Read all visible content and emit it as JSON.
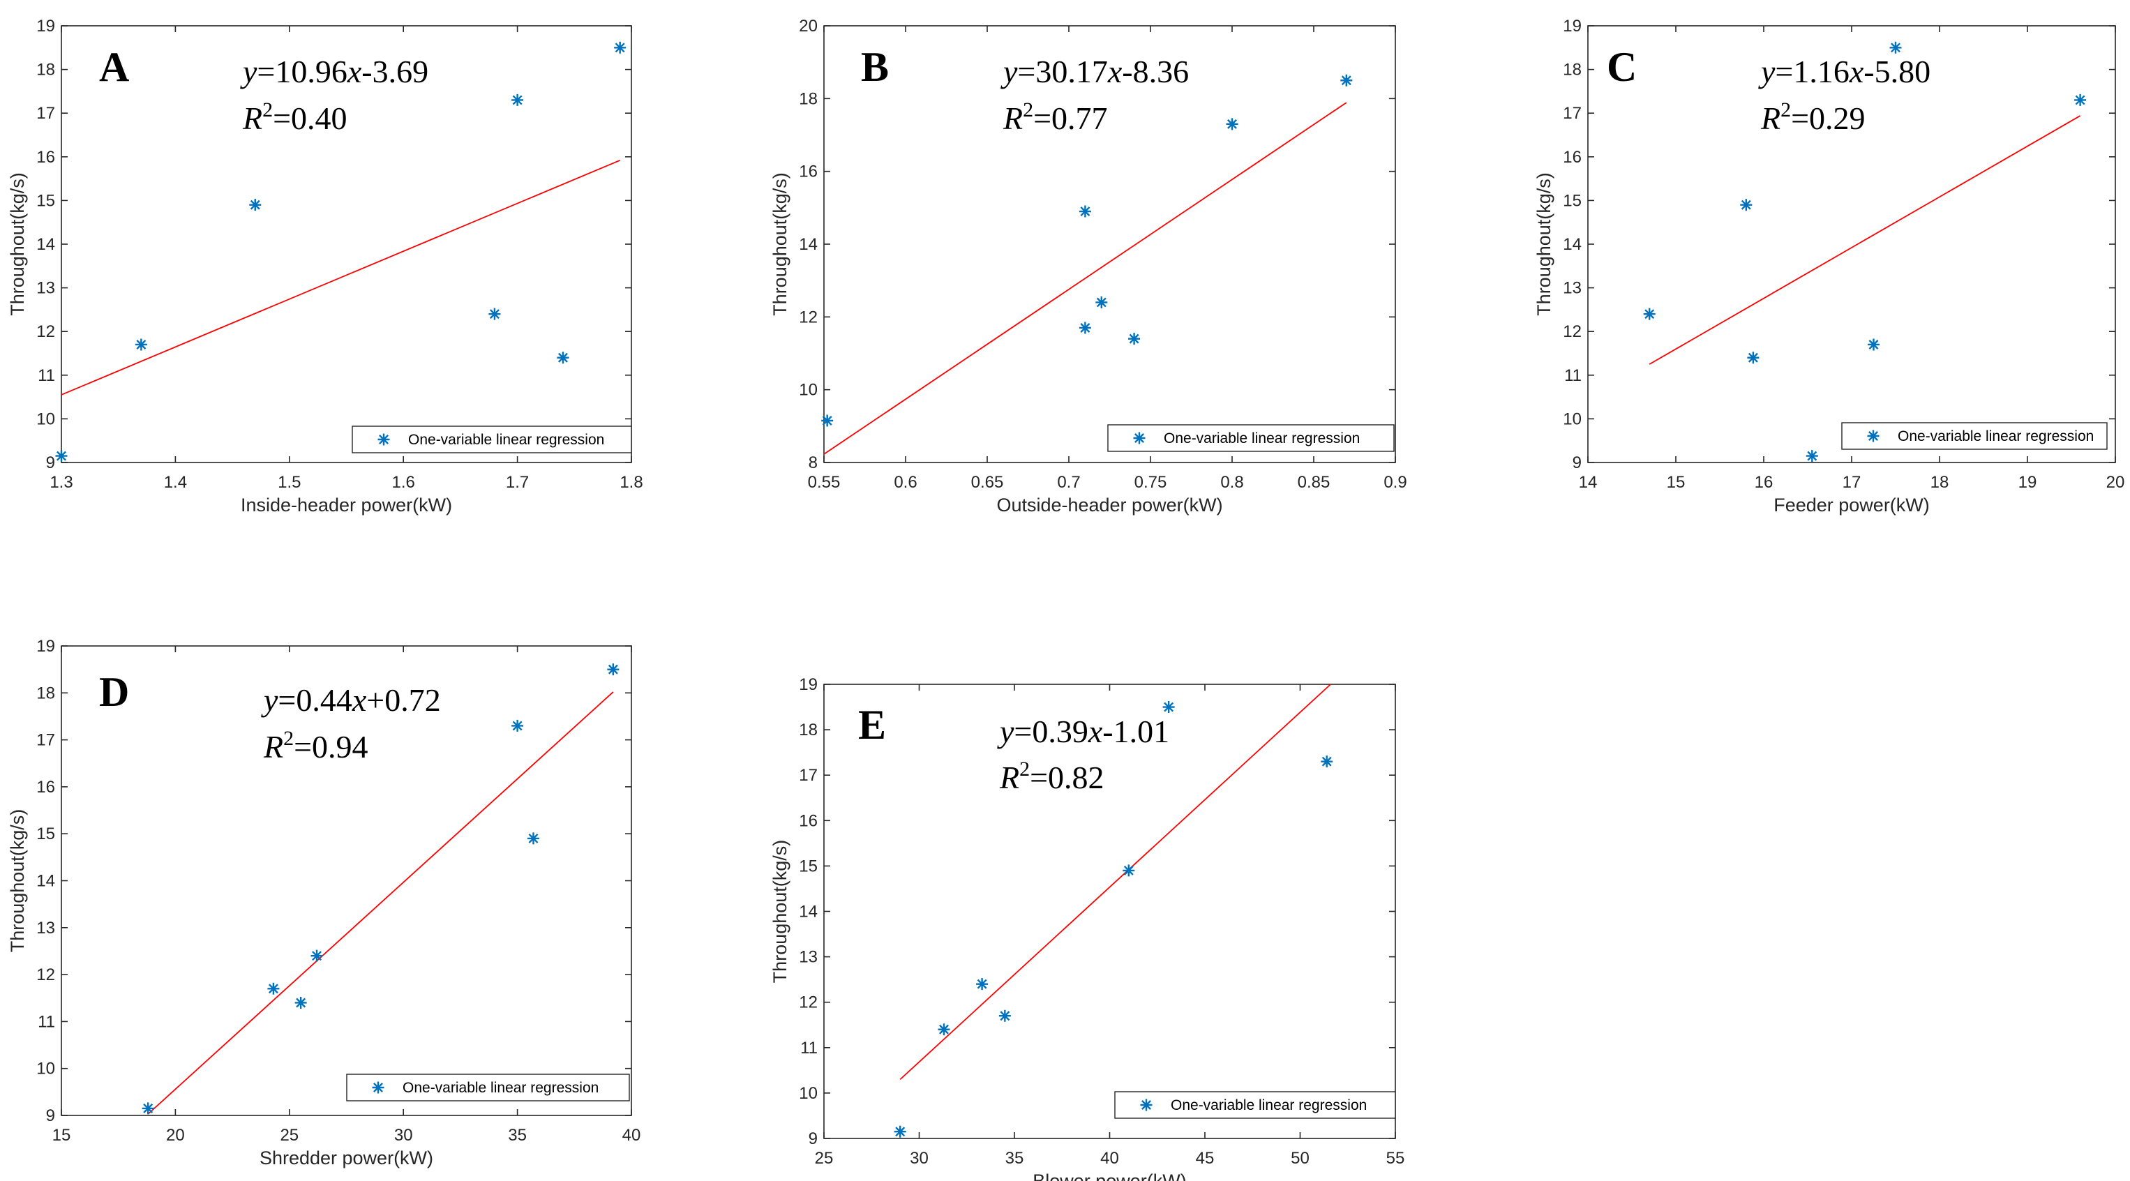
{
  "colors": {
    "marker": "#0072BD",
    "fit_line": "#FF0000",
    "axis": "#262626"
  },
  "chart_data": [
    {
      "type": "scatter",
      "panel_label": "A",
      "equation": {
        "y": "y",
        "eq": "=10.96",
        "x": "x",
        "rest": "-3.69"
      },
      "r2": {
        "R": "R",
        "sup": "2",
        "rest": "=0.40"
      },
      "xlabel": "Inside-header power(kW)",
      "ylabel": "Throughout(kg/s)",
      "xlim": [
        1.3,
        1.8
      ],
      "ylim": [
        9,
        19
      ],
      "xticks": [
        "1.3",
        "1.4",
        "1.5",
        "1.6",
        "1.7",
        "1.8"
      ],
      "yticks": [
        "9",
        "10",
        "11",
        "12",
        "13",
        "14",
        "15",
        "16",
        "17",
        "18",
        "19"
      ],
      "legend": "One-variable linear regression",
      "legend_position": "bottom-right",
      "series": [
        {
          "name": "One-variable linear regression",
          "x": [
            1.3,
            1.37,
            1.47,
            1.68,
            1.7,
            1.74,
            1.79
          ],
          "y": [
            9.15,
            11.7,
            14.9,
            12.4,
            17.3,
            11.4,
            18.5
          ]
        }
      ],
      "fit_line": {
        "x": [
          1.3,
          1.79
        ],
        "y": [
          10.55,
          15.92
        ]
      }
    },
    {
      "type": "scatter",
      "panel_label": "B",
      "equation": {
        "y": "y",
        "eq": "=30.17",
        "x": "x",
        "rest": "-8.36"
      },
      "r2": {
        "R": "R",
        "sup": "2",
        "rest": "=0.77"
      },
      "xlabel": "Outside-header power(kW)",
      "ylabel": "Throughout(kg/s)",
      "xlim": [
        0.55,
        0.9
      ],
      "ylim": [
        8,
        20
      ],
      "xticks": [
        "0.55",
        "0.6",
        "0.65",
        "0.7",
        "0.75",
        "0.8",
        "0.85",
        "0.9"
      ],
      "yticks": [
        "8",
        "10",
        "12",
        "14",
        "16",
        "18",
        "20"
      ],
      "legend": "One-variable linear regression",
      "legend_position": "bottom-right",
      "series": [
        {
          "name": "One-variable linear regression",
          "x": [
            0.552,
            0.71,
            0.71,
            0.72,
            0.74,
            0.8,
            0.87
          ],
          "y": [
            9.15,
            11.7,
            14.9,
            12.4,
            11.4,
            17.3,
            18.5
          ]
        }
      ],
      "fit_line": {
        "x": [
          0.55,
          0.87
        ],
        "y": [
          8.23,
          17.89
        ]
      }
    },
    {
      "type": "scatter",
      "panel_label": "C",
      "equation": {
        "y": "y",
        "eq": "=1.16",
        "x": "x",
        "rest": "-5.80"
      },
      "r2": {
        "R": "R",
        "sup": "2",
        "rest": "=0.29"
      },
      "xlabel": "Feeder power(kW)",
      "ylabel": "Throughout(kg/s)",
      "xlim": [
        14,
        20
      ],
      "ylim": [
        9,
        19
      ],
      "xticks": [
        "14",
        "15",
        "16",
        "17",
        "18",
        "19",
        "20"
      ],
      "yticks": [
        "9",
        "10",
        "11",
        "12",
        "13",
        "14",
        "15",
        "16",
        "17",
        "18",
        "19"
      ],
      "legend": "One-variable linear regression",
      "legend_position": "bottom-right",
      "series": [
        {
          "name": "One-variable linear regression",
          "x": [
            14.7,
            15.8,
            15.88,
            16.55,
            17.25,
            17.5,
            19.6
          ],
          "y": [
            12.4,
            14.9,
            11.4,
            9.15,
            11.7,
            18.5,
            17.3
          ]
        }
      ],
      "fit_line": {
        "x": [
          14.7,
          19.6
        ],
        "y": [
          11.25,
          16.94
        ]
      }
    },
    {
      "type": "scatter",
      "panel_label": "D",
      "equation": {
        "y": "y",
        "eq": "=0.44",
        "x": "x",
        "rest": "+0.72"
      },
      "r2": {
        "R": "R",
        "sup": "2",
        "rest": "=0.94"
      },
      "xlabel": "Shredder power(kW)",
      "ylabel": "Throughout(kg/s)",
      "xlim": [
        15,
        40
      ],
      "ylim": [
        9,
        19
      ],
      "xticks": [
        "15",
        "20",
        "25",
        "30",
        "35",
        "40"
      ],
      "yticks": [
        "9",
        "10",
        "11",
        "12",
        "13",
        "14",
        "15",
        "16",
        "17",
        "18",
        "19"
      ],
      "legend": "One-variable linear regression",
      "legend_position": "bottom-right",
      "series": [
        {
          "name": "One-variable linear regression",
          "x": [
            18.8,
            24.3,
            25.5,
            26.2,
            35.0,
            35.7,
            39.2
          ],
          "y": [
            9.15,
            11.7,
            11.4,
            12.4,
            17.3,
            14.9,
            18.5
          ]
        }
      ],
      "fit_line": {
        "x": [
          18.8,
          39.2
        ],
        "y": [
          9.03,
          18.02
        ]
      }
    },
    {
      "type": "scatter",
      "panel_label": "E",
      "equation": {
        "y": "y",
        "eq": "=0.39",
        "x": "x",
        "rest": "-1.01"
      },
      "r2": {
        "R": "R",
        "sup": "2",
        "rest": "=0.82"
      },
      "xlabel": "Blower power(kW)",
      "ylabel": "Throughout(kg/s)",
      "xlim": [
        25,
        55
      ],
      "ylim": [
        9,
        19
      ],
      "xticks": [
        "25",
        "30",
        "35",
        "40",
        "45",
        "50",
        "55"
      ],
      "yticks": [
        "9",
        "10",
        "11",
        "12",
        "13",
        "14",
        "15",
        "16",
        "17",
        "18",
        "19"
      ],
      "legend": "One-variable linear regression",
      "legend_position": "bottom-right",
      "series": [
        {
          "name": "One-variable linear regression",
          "x": [
            29.0,
            31.3,
            33.3,
            34.5,
            41.0,
            43.1,
            51.4
          ],
          "y": [
            9.15,
            11.4,
            12.4,
            11.7,
            14.9,
            18.5,
            17.3
          ]
        }
      ],
      "fit_line": {
        "x": [
          29.0,
          51.6
        ],
        "y": [
          10.3,
          19.0
        ]
      }
    }
  ]
}
